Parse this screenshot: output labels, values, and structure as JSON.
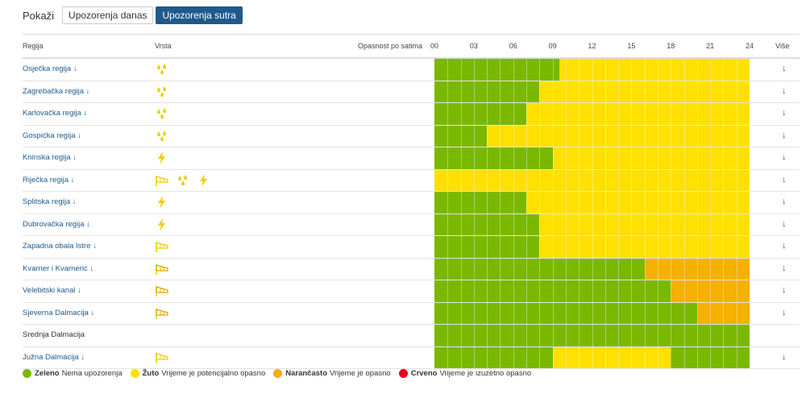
{
  "toolbar": {
    "show_label": "Pokaži",
    "tab_today": "Upozorenja danas",
    "tab_tomorrow": "Upozorenja sutra"
  },
  "table": {
    "headers": {
      "region": "Regija",
      "type": "Vrsta",
      "danger": "Opasnost po satima",
      "more": "Više",
      "hours": [
        "00",
        "03",
        "06",
        "09",
        "12",
        "15",
        "18",
        "21",
        "24"
      ]
    },
    "rows": [
      {
        "region": "Osječka regija",
        "has_arrow": true,
        "types": [
          "rain"
        ],
        "more": "↓",
        "segments": [
          {
            "level": "green",
            "from": 0,
            "to": 9.5
          },
          {
            "level": "yellow",
            "from": 9.5,
            "to": 24
          }
        ]
      },
      {
        "region": "Zagrebačka regija",
        "has_arrow": true,
        "types": [
          "rain"
        ],
        "more": "↓",
        "segments": [
          {
            "level": "green",
            "from": 0,
            "to": 8
          },
          {
            "level": "yellow",
            "from": 8,
            "to": 24
          }
        ]
      },
      {
        "region": "Karlovačka regija",
        "has_arrow": true,
        "types": [
          "rain"
        ],
        "more": "↓",
        "segments": [
          {
            "level": "green",
            "from": 0,
            "to": 7
          },
          {
            "level": "yellow",
            "from": 7,
            "to": 24
          }
        ]
      },
      {
        "region": "Gospićka regija",
        "has_arrow": true,
        "types": [
          "rain"
        ],
        "more": "↓",
        "segments": [
          {
            "level": "green",
            "from": 0,
            "to": 4
          },
          {
            "level": "yellow",
            "from": 4,
            "to": 24
          }
        ]
      },
      {
        "region": "Kninska regija",
        "has_arrow": true,
        "types": [
          "thunder"
        ],
        "more": "↓",
        "segments": [
          {
            "level": "green",
            "from": 0,
            "to": 9
          },
          {
            "level": "yellow",
            "from": 9,
            "to": 24
          }
        ]
      },
      {
        "region": "Riječka regija",
        "has_arrow": true,
        "types": [
          "wind",
          "rain",
          "thunder"
        ],
        "more": "↓",
        "segments": [
          {
            "level": "yellow",
            "from": 0,
            "to": 24
          }
        ]
      },
      {
        "region": "Splitska regija",
        "has_arrow": true,
        "types": [
          "thunder"
        ],
        "more": "↓",
        "segments": [
          {
            "level": "green",
            "from": 0,
            "to": 7
          },
          {
            "level": "yellow",
            "from": 7,
            "to": 24
          }
        ]
      },
      {
        "region": "Dubrovačka regija",
        "has_arrow": true,
        "types": [
          "thunder"
        ],
        "more": "↓",
        "segments": [
          {
            "level": "green",
            "from": 0,
            "to": 8
          },
          {
            "level": "yellow",
            "from": 8,
            "to": 24
          }
        ]
      },
      {
        "region": "Zapadna obala Istre",
        "has_arrow": true,
        "types": [
          "wind"
        ],
        "more": "↓",
        "segments": [
          {
            "level": "green",
            "from": 0,
            "to": 8
          },
          {
            "level": "yellow",
            "from": 8,
            "to": 24
          }
        ]
      },
      {
        "region": "Kvarner i Kvarnerić",
        "has_arrow": true,
        "types": [
          "wind_strong"
        ],
        "more": "↓",
        "segments": [
          {
            "level": "green",
            "from": 0,
            "to": 16
          },
          {
            "level": "orange",
            "from": 16,
            "to": 24
          }
        ]
      },
      {
        "region": "Velebitski kanal",
        "has_arrow": true,
        "types": [
          "wind_strong"
        ],
        "more": "↓",
        "segments": [
          {
            "level": "green",
            "from": 0,
            "to": 18
          },
          {
            "level": "orange",
            "from": 18,
            "to": 24
          }
        ]
      },
      {
        "region": "Sjeverna Dalmacija",
        "has_arrow": true,
        "types": [
          "wind_strong"
        ],
        "more": "↓",
        "segments": [
          {
            "level": "green",
            "from": 0,
            "to": 20
          },
          {
            "level": "orange",
            "from": 20,
            "to": 24
          }
        ]
      },
      {
        "region": "Srednja Dalmacija",
        "has_arrow": false,
        "types": [],
        "more": "",
        "segments": [
          {
            "level": "green",
            "from": 0,
            "to": 24
          }
        ]
      },
      {
        "region": "Južna Dalmacija",
        "has_arrow": true,
        "types": [
          "wind"
        ],
        "more": "↓",
        "segments": [
          {
            "level": "green",
            "from": 0,
            "to": 9
          },
          {
            "level": "yellow",
            "from": 9,
            "to": 18
          },
          {
            "level": "green",
            "from": 18,
            "to": 24
          }
        ]
      }
    ]
  },
  "colors": {
    "green": "#7ab800",
    "yellow": "#ffe000",
    "orange": "#f5b000",
    "red": "#e8001c",
    "icon": "#f0cc00"
  },
  "legend": [
    {
      "name": "Zeleno",
      "desc": "Nema upozorenja",
      "color": "#7ab800"
    },
    {
      "name": "Žuto",
      "desc": "Vrijeme je potencijalno opasno",
      "color": "#ffe000"
    },
    {
      "name": "Narančasto",
      "desc": "Vrijeme je opasno",
      "color": "#f5b000"
    },
    {
      "name": "Crveno",
      "desc": "Vrijeme je izuzetno opasno",
      "color": "#e8001c"
    }
  ]
}
